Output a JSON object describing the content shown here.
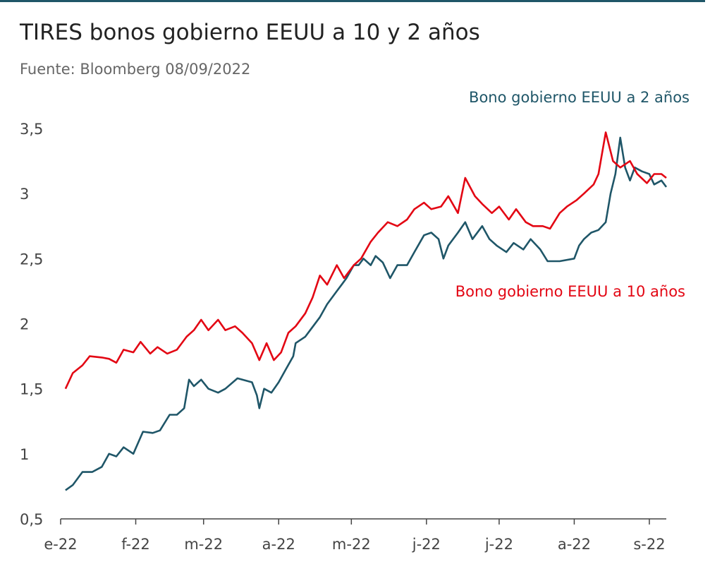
{
  "title": "TIRES bonos gobierno EEUU a 10 y 2 años",
  "subtitle": "Fuente: Bloomberg 08/09/2022",
  "colors": {
    "series_2y": "#1f5668",
    "series_10y": "#e30613",
    "axis": "#444444",
    "rule": "#1f5668"
  },
  "chart_data": {
    "type": "line",
    "xlabel": "",
    "ylabel": "",
    "x_range": [
      "2022-01-03",
      "2022-09-08"
    ],
    "ylim": [
      0.5,
      3.6
    ],
    "y_ticks": [
      {
        "value": 0.5,
        "label": "0,5"
      },
      {
        "value": 1,
        "label": "1"
      },
      {
        "value": 1.5,
        "label": "1,5"
      },
      {
        "value": 2,
        "label": "2"
      },
      {
        "value": 2.5,
        "label": "2,5"
      },
      {
        "value": 3,
        "label": "3"
      },
      {
        "value": 3.5,
        "label": "3,5"
      }
    ],
    "x_ticks": [
      {
        "date": "2022-01-01",
        "label": "e-22"
      },
      {
        "date": "2022-02-01",
        "label": "f-22"
      },
      {
        "date": "2022-03-01",
        "label": "m-22"
      },
      {
        "date": "2022-04-01",
        "label": "a-22"
      },
      {
        "date": "2022-05-01",
        "label": "m-22"
      },
      {
        "date": "2022-06-01",
        "label": "j-22"
      },
      {
        "date": "2022-07-01",
        "label": "j-22"
      },
      {
        "date": "2022-08-01",
        "label": "a-22"
      },
      {
        "date": "2022-09-01",
        "label": "s-22"
      }
    ],
    "grid": false,
    "legend": "direct labels on series",
    "series": [
      {
        "name": "Bono gobierno EEUU a 2 años",
        "color": "#1f5668",
        "points": [
          [
            "2022-01-03",
            0.72
          ],
          [
            "2022-01-06",
            0.76
          ],
          [
            "2022-01-10",
            0.86
          ],
          [
            "2022-01-14",
            0.86
          ],
          [
            "2022-01-18",
            0.9
          ],
          [
            "2022-01-21",
            1.0
          ],
          [
            "2022-01-24",
            0.98
          ],
          [
            "2022-01-27",
            1.05
          ],
          [
            "2022-01-31",
            1.0
          ],
          [
            "2022-02-04",
            1.17
          ],
          [
            "2022-02-08",
            1.16
          ],
          [
            "2022-02-11",
            1.18
          ],
          [
            "2022-02-15",
            1.3
          ],
          [
            "2022-02-18",
            1.3
          ],
          [
            "2022-02-21",
            1.35
          ],
          [
            "2022-02-23",
            1.57
          ],
          [
            "2022-02-25",
            1.52
          ],
          [
            "2022-02-28",
            1.57
          ],
          [
            "2022-03-03",
            1.5
          ],
          [
            "2022-03-07",
            1.47
          ],
          [
            "2022-03-10",
            1.5
          ],
          [
            "2022-03-15",
            1.58
          ],
          [
            "2022-03-17",
            1.57
          ],
          [
            "2022-03-21",
            1.55
          ],
          [
            "2022-03-23",
            1.45
          ],
          [
            "2022-03-24",
            1.35
          ],
          [
            "2022-03-26",
            1.5
          ],
          [
            "2022-03-29",
            1.47
          ],
          [
            "2022-04-01",
            1.55
          ],
          [
            "2022-04-04",
            1.65
          ],
          [
            "2022-04-07",
            1.75
          ],
          [
            "2022-04-08",
            1.85
          ],
          [
            "2022-04-12",
            1.9
          ],
          [
            "2022-04-14",
            1.95
          ],
          [
            "2022-04-18",
            2.05
          ],
          [
            "2022-04-21",
            2.15
          ],
          [
            "2022-04-25",
            2.25
          ],
          [
            "2022-04-27",
            2.3
          ],
          [
            "2022-04-29",
            2.35
          ],
          [
            "2022-05-02",
            2.45
          ],
          [
            "2022-05-04",
            2.45
          ],
          [
            "2022-05-06",
            2.5
          ],
          [
            "2022-05-09",
            2.45
          ],
          [
            "2022-05-11",
            2.52
          ],
          [
            "2022-05-14",
            2.47
          ],
          [
            "2022-05-17",
            2.35
          ],
          [
            "2022-05-20",
            2.45
          ],
          [
            "2022-05-24",
            2.45
          ],
          [
            "2022-05-27",
            2.55
          ],
          [
            "2022-05-31",
            2.68
          ],
          [
            "2022-06-03",
            2.7
          ],
          [
            "2022-06-06",
            2.65
          ],
          [
            "2022-06-08",
            2.5
          ],
          [
            "2022-06-10",
            2.6
          ],
          [
            "2022-06-14",
            2.7
          ],
          [
            "2022-06-17",
            2.78
          ],
          [
            "2022-06-20",
            2.65
          ],
          [
            "2022-06-24",
            2.75
          ],
          [
            "2022-06-27",
            2.65
          ],
          [
            "2022-06-30",
            2.6
          ],
          [
            "2022-07-04",
            2.55
          ],
          [
            "2022-07-07",
            2.62
          ],
          [
            "2022-07-11",
            2.57
          ],
          [
            "2022-07-14",
            2.65
          ],
          [
            "2022-07-18",
            2.57
          ],
          [
            "2022-07-21",
            2.48
          ],
          [
            "2022-07-26",
            2.48
          ],
          [
            "2022-08-01",
            2.5
          ],
          [
            "2022-08-03",
            2.6
          ],
          [
            "2022-08-05",
            2.65
          ],
          [
            "2022-08-08",
            2.7
          ],
          [
            "2022-08-11",
            2.72
          ],
          [
            "2022-08-14",
            2.78
          ],
          [
            "2022-08-16",
            3.0
          ],
          [
            "2022-08-18",
            3.15
          ],
          [
            "2022-08-20",
            3.43
          ],
          [
            "2022-08-22",
            3.2
          ],
          [
            "2022-08-24",
            3.1
          ],
          [
            "2022-08-26",
            3.2
          ],
          [
            "2022-08-29",
            3.17
          ],
          [
            "2022-09-01",
            3.15
          ],
          [
            "2022-09-03",
            3.07
          ],
          [
            "2022-09-06",
            3.1
          ],
          [
            "2022-09-08",
            3.05
          ]
        ]
      },
      {
        "name": "Bono gobierno EEUU a 10 años",
        "color": "#e30613",
        "points": [
          [
            "2022-01-03",
            1.5
          ],
          [
            "2022-01-06",
            1.62
          ],
          [
            "2022-01-10",
            1.68
          ],
          [
            "2022-01-13",
            1.75
          ],
          [
            "2022-01-18",
            1.74
          ],
          [
            "2022-01-21",
            1.73
          ],
          [
            "2022-01-24",
            1.7
          ],
          [
            "2022-01-27",
            1.8
          ],
          [
            "2022-01-31",
            1.78
          ],
          [
            "2022-02-03",
            1.86
          ],
          [
            "2022-02-07",
            1.77
          ],
          [
            "2022-02-10",
            1.82
          ],
          [
            "2022-02-14",
            1.77
          ],
          [
            "2022-02-18",
            1.8
          ],
          [
            "2022-02-22",
            1.9
          ],
          [
            "2022-02-25",
            1.95
          ],
          [
            "2022-02-28",
            2.03
          ],
          [
            "2022-03-03",
            1.95
          ],
          [
            "2022-03-07",
            2.03
          ],
          [
            "2022-03-10",
            1.95
          ],
          [
            "2022-03-14",
            1.98
          ],
          [
            "2022-03-17",
            1.93
          ],
          [
            "2022-03-21",
            1.85
          ],
          [
            "2022-03-24",
            1.72
          ],
          [
            "2022-03-27",
            1.85
          ],
          [
            "2022-03-30",
            1.72
          ],
          [
            "2022-04-02",
            1.78
          ],
          [
            "2022-04-05",
            1.93
          ],
          [
            "2022-04-08",
            1.98
          ],
          [
            "2022-04-12",
            2.08
          ],
          [
            "2022-04-15",
            2.2
          ],
          [
            "2022-04-18",
            2.37
          ],
          [
            "2022-04-21",
            2.3
          ],
          [
            "2022-04-25",
            2.45
          ],
          [
            "2022-04-28",
            2.35
          ],
          [
            "2022-05-02",
            2.45
          ],
          [
            "2022-05-05",
            2.5
          ],
          [
            "2022-05-09",
            2.63
          ],
          [
            "2022-05-12",
            2.7
          ],
          [
            "2022-05-16",
            2.78
          ],
          [
            "2022-05-20",
            2.75
          ],
          [
            "2022-05-24",
            2.8
          ],
          [
            "2022-05-27",
            2.88
          ],
          [
            "2022-05-31",
            2.93
          ],
          [
            "2022-06-03",
            2.88
          ],
          [
            "2022-06-07",
            2.9
          ],
          [
            "2022-06-10",
            2.98
          ],
          [
            "2022-06-14",
            2.85
          ],
          [
            "2022-06-17",
            3.12
          ],
          [
            "2022-06-21",
            2.98
          ],
          [
            "2022-06-24",
            2.92
          ],
          [
            "2022-06-28",
            2.85
          ],
          [
            "2022-07-01",
            2.9
          ],
          [
            "2022-07-05",
            2.8
          ],
          [
            "2022-07-08",
            2.88
          ],
          [
            "2022-07-12",
            2.78
          ],
          [
            "2022-07-15",
            2.75
          ],
          [
            "2022-07-19",
            2.75
          ],
          [
            "2022-07-22",
            2.73
          ],
          [
            "2022-07-26",
            2.85
          ],
          [
            "2022-07-29",
            2.9
          ],
          [
            "2022-08-02",
            2.95
          ],
          [
            "2022-08-05",
            3.0
          ],
          [
            "2022-08-09",
            3.07
          ],
          [
            "2022-08-11",
            3.15
          ],
          [
            "2022-08-14",
            3.47
          ],
          [
            "2022-08-17",
            3.25
          ],
          [
            "2022-08-20",
            3.2
          ],
          [
            "2022-08-24",
            3.25
          ],
          [
            "2022-08-27",
            3.15
          ],
          [
            "2022-08-31",
            3.08
          ],
          [
            "2022-09-03",
            3.15
          ],
          [
            "2022-09-06",
            3.15
          ],
          [
            "2022-09-08",
            3.12
          ]
        ]
      }
    ],
    "series_labels": [
      {
        "text": "Bono gobierno EEUU a 2 años",
        "color": "#1f5668"
      },
      {
        "text": "Bono gobierno EEUU a 10 años",
        "color": "#e30613"
      }
    ]
  }
}
